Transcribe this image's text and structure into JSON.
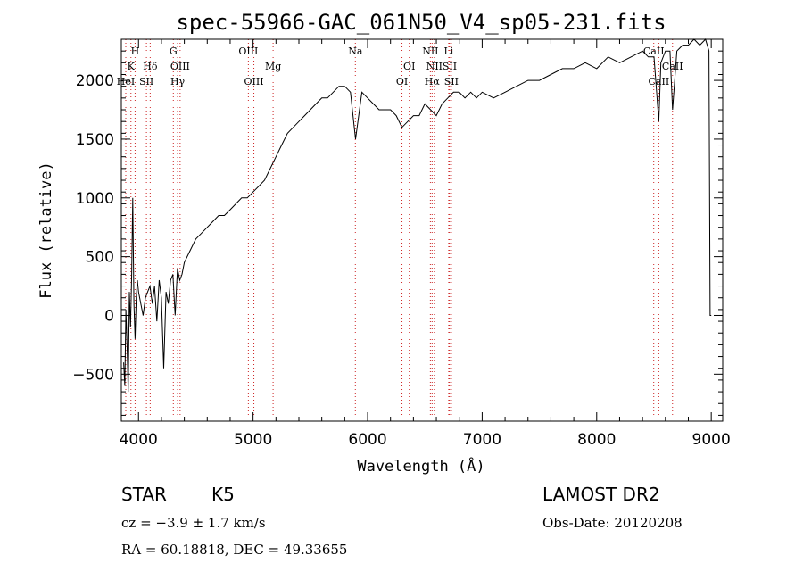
{
  "chart_data": {
    "type": "line",
    "title": "spec-55966-GAC_061N50_V4_sp05-231.fits",
    "xlabel": "Wavelength (Å)",
    "ylabel": "Flux (relative)",
    "xlim": [
      3850,
      9100
    ],
    "ylim": [
      -900,
      2350
    ],
    "xticks": [
      4000,
      5000,
      6000,
      7000,
      8000,
      9000
    ],
    "yticks": [
      -500,
      0,
      500,
      1000,
      1500,
      2000
    ],
    "grid": false,
    "series": [
      {
        "color": "#000000",
        "x": [
          3870,
          3880,
          3890,
          3900,
          3910,
          3920,
          3930,
          3940,
          3950,
          3960,
          3970,
          3980,
          3990,
          4000,
          4020,
          4040,
          4060,
          4080,
          4100,
          4120,
          4140,
          4160,
          4180,
          4200,
          4220,
          4240,
          4260,
          4280,
          4300,
          4320,
          4340,
          4360,
          4380,
          4400,
          4450,
          4500,
          4550,
          4600,
          4650,
          4700,
          4750,
          4800,
          4850,
          4900,
          4950,
          5000,
          5050,
          5100,
          5150,
          5200,
          5250,
          5300,
          5350,
          5400,
          5450,
          5500,
          5550,
          5600,
          5650,
          5700,
          5750,
          5800,
          5850,
          5895,
          5950,
          6000,
          6050,
          6100,
          6150,
          6200,
          6250,
          6300,
          6350,
          6400,
          6450,
          6500,
          6550,
          6600,
          6650,
          6700,
          6750,
          6800,
          6850,
          6900,
          6950,
          7000,
          7100,
          7200,
          7300,
          7400,
          7500,
          7600,
          7700,
          7800,
          7900,
          8000,
          8100,
          8200,
          8300,
          8400,
          8450,
          8500,
          8542,
          8560,
          8600,
          8640,
          8662,
          8700,
          8750,
          8800,
          8850,
          8900,
          8950,
          8980,
          8990,
          9000
        ],
        "y": [
          -400,
          -600,
          50,
          -250,
          -650,
          200,
          -100,
          350,
          1000,
          100,
          -200,
          150,
          300,
          200,
          100,
          0,
          150,
          200,
          250,
          100,
          250,
          -50,
          300,
          150,
          -450,
          200,
          100,
          300,
          350,
          0,
          400,
          300,
          350,
          450,
          550,
          650,
          700,
          750,
          800,
          850,
          850,
          900,
          950,
          1000,
          1000,
          1050,
          1100,
          1150,
          1250,
          1350,
          1450,
          1550,
          1600,
          1650,
          1700,
          1750,
          1800,
          1850,
          1850,
          1900,
          1950,
          1950,
          1900,
          1500,
          1900,
          1850,
          1800,
          1750,
          1750,
          1750,
          1700,
          1600,
          1650,
          1700,
          1700,
          1800,
          1750,
          1700,
          1800,
          1850,
          1900,
          1900,
          1850,
          1900,
          1850,
          1900,
          1850,
          1900,
          1950,
          2000,
          2000,
          2050,
          2100,
          2100,
          2150,
          2100,
          2200,
          2150,
          2200,
          2250,
          2200,
          2200,
          1650,
          2150,
          2250,
          2250,
          1750,
          2250,
          2300,
          2300,
          2350,
          2300,
          2350,
          2250,
          0,
          0
        ]
      }
    ],
    "line_markers": [
      {
        "label": "H",
        "x": 3970,
        "tier": 0
      },
      {
        "label": "K",
        "x": 3934,
        "tier": 1
      },
      {
        "label": "HeI",
        "x": 3889,
        "tier": 2
      },
      {
        "label": "Hδ",
        "x": 4102,
        "tier": 1
      },
      {
        "label": "SII",
        "x": 4069,
        "tier": 2
      },
      {
        "label": "G",
        "x": 4304,
        "tier": 0
      },
      {
        "label": "OIII",
        "x": 4363,
        "tier": 1
      },
      {
        "label": "Hγ",
        "x": 4341,
        "tier": 2
      },
      {
        "label": "OIII",
        "x": 4959,
        "tier": 0
      },
      {
        "label": "OIII",
        "x": 5007,
        "tier": 2
      },
      {
        "label": "Mg",
        "x": 5175,
        "tier": 1
      },
      {
        "label": "Na",
        "x": 5893,
        "tier": 0
      },
      {
        "label": "OI",
        "x": 6364,
        "tier": 1
      },
      {
        "label": "OI",
        "x": 6300,
        "tier": 2
      },
      {
        "label": "NII",
        "x": 6548,
        "tier": 0
      },
      {
        "label": "Li",
        "x": 6708,
        "tier": 0
      },
      {
        "label": "NII",
        "x": 6583,
        "tier": 1
      },
      {
        "label": "SII",
        "x": 6716,
        "tier": 1
      },
      {
        "label": "Hα",
        "x": 6563,
        "tier": 2
      },
      {
        "label": "SII",
        "x": 6731,
        "tier": 2
      },
      {
        "label": "CaII",
        "x": 8498,
        "tier": 0
      },
      {
        "label": "CaII",
        "x": 8662,
        "tier": 1
      },
      {
        "label": "CaII",
        "x": 8542,
        "tier": 2
      }
    ]
  },
  "info": {
    "object_class": "STAR",
    "subclass": "K5",
    "survey": "LAMOST DR2",
    "redshift": "cz = −3.9 ± 1.7 km/s",
    "obs_date": "Obs-Date: 20120208",
    "coords": "RA =  60.18818, DEC =  49.33655"
  }
}
